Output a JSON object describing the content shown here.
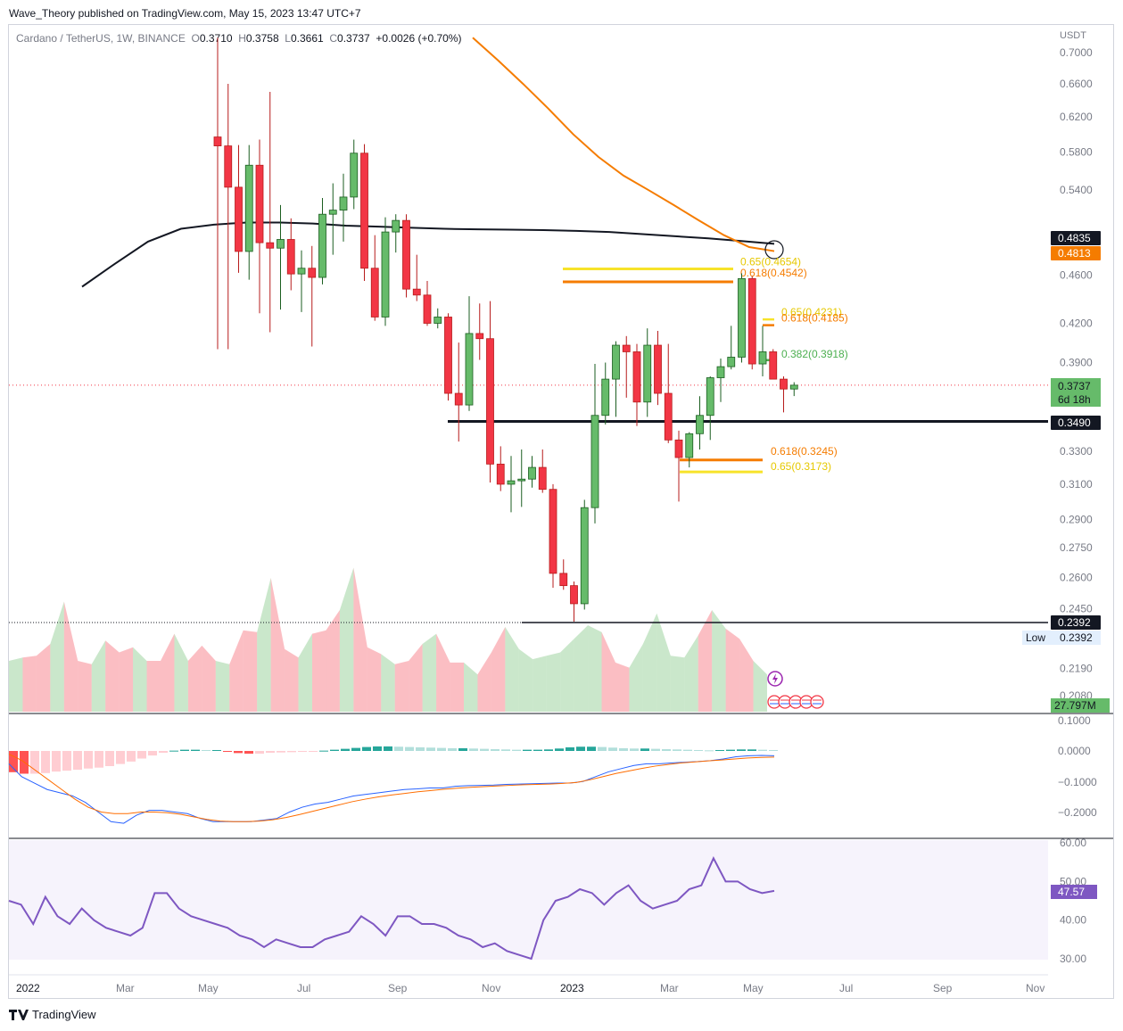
{
  "header": {
    "published": "Wave_Theory published on TradingView.com, May 15, 2023 13:47 UTC+7",
    "symbol": "Cardano / TetherUS, 1W, BINANCE",
    "o_label": "O",
    "o": "0.3710",
    "h_label": "H",
    "h": "0.3758",
    "l_label": "L",
    "l": "0.3661",
    "c_label": "C",
    "c": "0.3737",
    "change": "+0.0026 (+0.70%)"
  },
  "axis": {
    "currency": "USDT",
    "price_ticks": [
      "0.7000",
      "0.6600",
      "0.6200",
      "0.5800",
      "0.5400",
      "0.4600",
      "0.4200",
      "0.3900",
      "0.3300",
      "0.3100",
      "0.2900",
      "0.2750",
      "0.2600",
      "0.2450",
      "0.2190",
      "0.2080"
    ],
    "time_ticks": [
      "2022",
      "Mar",
      "May",
      "Jul",
      "Sep",
      "Nov",
      "2023",
      "Mar",
      "May",
      "Jul",
      "Sep",
      "Nov"
    ],
    "macd_ticks": [
      "0.1000",
      "0.0000",
      "−0.1000",
      "−0.2000"
    ],
    "rsi_ticks": [
      "60.00",
      "50.00",
      "40.00",
      "30.00"
    ]
  },
  "badges": {
    "ma200": "0.4835",
    "ma_orange": "0.4813",
    "last_price": "0.3737",
    "countdown": "6d 18h",
    "support": "0.3490",
    "low_line": "0.2392",
    "low_label": "Low",
    "low_value": "0.2392",
    "volume": "27.797M",
    "rsi": "47.57"
  },
  "fib_labels": {
    "f65_top": "0.65(0.4654)",
    "f618_top": "0.618(0.4542)",
    "f65_mid": "0.65(0.4231)",
    "f618_mid": "0.618(0.4185)",
    "f382": "0.382(0.3918)",
    "f618_low": "0.618(0.3245)",
    "f65_low": "0.65(0.3173)"
  },
  "colors": {
    "up": "#66bb6a",
    "down": "#f23645",
    "up_border": "#1b5e20",
    "down_border": "#b71c1c",
    "ma_orange": "#f57c00",
    "ma_black": "#131722",
    "fib_yellow": "#f7e32a",
    "fib_orange": "#f57c00",
    "fib_green": "#4caf50",
    "rsi": "#7e57c2",
    "macd_blue": "#2962ff",
    "signal": "#ff6d00"
  },
  "footer": {
    "brand": "TradingView"
  },
  "chart_data": {
    "type": "candlestick",
    "title": "Cardano / TetherUS, 1W, BINANCE",
    "ylim": [
      0.2,
      0.72
    ],
    "y_scale": "log",
    "candles": [
      {
        "o": 0.597,
        "h": 0.72,
        "l": 0.4,
        "c": 0.587
      },
      {
        "o": 0.587,
        "h": 0.66,
        "l": 0.4,
        "c": 0.543
      },
      {
        "o": 0.543,
        "h": 0.588,
        "l": 0.462,
        "c": 0.481
      },
      {
        "o": 0.481,
        "h": 0.588,
        "l": 0.456,
        "c": 0.566
      },
      {
        "o": 0.566,
        "h": 0.594,
        "l": 0.428,
        "c": 0.489
      },
      {
        "o": 0.489,
        "h": 0.65,
        "l": 0.413,
        "c": 0.484
      },
      {
        "o": 0.484,
        "h": 0.525,
        "l": 0.431,
        "c": 0.492
      },
      {
        "o": 0.492,
        "h": 0.512,
        "l": 0.447,
        "c": 0.461
      },
      {
        "o": 0.461,
        "h": 0.482,
        "l": 0.429,
        "c": 0.466
      },
      {
        "o": 0.466,
        "h": 0.486,
        "l": 0.402,
        "c": 0.458
      },
      {
        "o": 0.458,
        "h": 0.532,
        "l": 0.452,
        "c": 0.516
      },
      {
        "o": 0.516,
        "h": 0.547,
        "l": 0.478,
        "c": 0.52
      },
      {
        "o": 0.52,
        "h": 0.557,
        "l": 0.49,
        "c": 0.533
      },
      {
        "o": 0.533,
        "h": 0.594,
        "l": 0.521,
        "c": 0.579
      },
      {
        "o": 0.579,
        "h": 0.589,
        "l": 0.455,
        "c": 0.466
      },
      {
        "o": 0.466,
        "h": 0.496,
        "l": 0.422,
        "c": 0.425
      },
      {
        "o": 0.425,
        "h": 0.513,
        "l": 0.418,
        "c": 0.499
      },
      {
        "o": 0.499,
        "h": 0.516,
        "l": 0.48,
        "c": 0.51
      },
      {
        "o": 0.51,
        "h": 0.516,
        "l": 0.441,
        "c": 0.448
      },
      {
        "o": 0.448,
        "h": 0.478,
        "l": 0.438,
        "c": 0.443
      },
      {
        "o": 0.443,
        "h": 0.455,
        "l": 0.418,
        "c": 0.42
      },
      {
        "o": 0.42,
        "h": 0.432,
        "l": 0.416,
        "c": 0.425
      },
      {
        "o": 0.425,
        "h": 0.428,
        "l": 0.363,
        "c": 0.368
      },
      {
        "o": 0.368,
        "h": 0.405,
        "l": 0.336,
        "c": 0.36
      },
      {
        "o": 0.36,
        "h": 0.442,
        "l": 0.356,
        "c": 0.412
      },
      {
        "o": 0.412,
        "h": 0.436,
        "l": 0.392,
        "c": 0.408
      },
      {
        "o": 0.408,
        "h": 0.438,
        "l": 0.311,
        "c": 0.322
      },
      {
        "o": 0.322,
        "h": 0.333,
        "l": 0.306,
        "c": 0.31
      },
      {
        "o": 0.31,
        "h": 0.327,
        "l": 0.294,
        "c": 0.312
      },
      {
        "o": 0.312,
        "h": 0.331,
        "l": 0.297,
        "c": 0.313
      },
      {
        "o": 0.313,
        "h": 0.327,
        "l": 0.308,
        "c": 0.32
      },
      {
        "o": 0.32,
        "h": 0.331,
        "l": 0.305,
        "c": 0.307
      },
      {
        "o": 0.307,
        "h": 0.31,
        "l": 0.255,
        "c": 0.262
      },
      {
        "o": 0.262,
        "h": 0.269,
        "l": 0.254,
        "c": 0.256
      },
      {
        "o": 0.256,
        "h": 0.258,
        "l": 0.2392,
        "c": 0.2474
      },
      {
        "o": 0.2474,
        "h": 0.301,
        "l": 0.2447,
        "c": 0.2966
      },
      {
        "o": 0.2966,
        "h": 0.389,
        "l": 0.2879,
        "c": 0.353
      },
      {
        "o": 0.353,
        "h": 0.39,
        "l": 0.347,
        "c": 0.378
      },
      {
        "o": 0.378,
        "h": 0.406,
        "l": 0.352,
        "c": 0.403
      },
      {
        "o": 0.403,
        "h": 0.41,
        "l": 0.365,
        "c": 0.398
      },
      {
        "o": 0.398,
        "h": 0.404,
        "l": 0.346,
        "c": 0.362
      },
      {
        "o": 0.362,
        "h": 0.416,
        "l": 0.352,
        "c": 0.403
      },
      {
        "o": 0.403,
        "h": 0.414,
        "l": 0.36,
        "c": 0.368
      },
      {
        "o": 0.368,
        "h": 0.404,
        "l": 0.335,
        "c": 0.337
      },
      {
        "o": 0.337,
        "h": 0.343,
        "l": 0.3,
        "c": 0.326
      },
      {
        "o": 0.326,
        "h": 0.342,
        "l": 0.32,
        "c": 0.341
      },
      {
        "o": 0.341,
        "h": 0.366,
        "l": 0.331,
        "c": 0.353
      },
      {
        "o": 0.353,
        "h": 0.38,
        "l": 0.337,
        "c": 0.379
      },
      {
        "o": 0.379,
        "h": 0.393,
        "l": 0.362,
        "c": 0.387
      },
      {
        "o": 0.387,
        "h": 0.418,
        "l": 0.385,
        "c": 0.394
      },
      {
        "o": 0.394,
        "h": 0.4615,
        "l": 0.39,
        "c": 0.457
      },
      {
        "o": 0.457,
        "h": 0.459,
        "l": 0.385,
        "c": 0.389
      },
      {
        "o": 0.389,
        "h": 0.418,
        "l": 0.38,
        "c": 0.398
      },
      {
        "o": 0.398,
        "h": 0.4,
        "l": 0.379,
        "c": 0.378
      },
      {
        "o": 0.378,
        "h": 0.38,
        "l": 0.355,
        "c": 0.371
      },
      {
        "o": 0.371,
        "h": 0.3758,
        "l": 0.3661,
        "c": 0.3737
      }
    ],
    "ma_black_200w": [
      0.45,
      0.47,
      0.49,
      0.502,
      0.506,
      0.508,
      0.508,
      0.507,
      0.505,
      0.504,
      0.503,
      0.502,
      0.5015,
      0.5012,
      0.5008,
      0.5,
      0.499,
      0.497,
      0.495,
      0.493,
      0.4905,
      0.488
    ],
    "ma_orange": [
      0.72,
      0.69,
      0.66,
      0.63,
      0.6,
      0.575,
      0.555,
      0.54,
      0.525,
      0.51,
      0.496,
      0.485,
      0.4813
    ],
    "levels": [
      {
        "name": "support",
        "value": 0.349
      },
      {
        "name": "yearly_low",
        "value": 0.2392
      },
      {
        "name": "fib_0.65_top",
        "value": 0.4654
      },
      {
        "name": "fib_0.618_top",
        "value": 0.4542
      },
      {
        "name": "fib_0.65_mid",
        "value": 0.4231
      },
      {
        "name": "fib_0.618_mid",
        "value": 0.4185
      },
      {
        "name": "fib_0.382",
        "value": 0.3918
      },
      {
        "name": "fib_0.618_low",
        "value": 0.3245
      },
      {
        "name": "fib_0.65_low",
        "value": 0.3173
      }
    ],
    "volume": [
      0.3,
      0.32,
      0.33,
      0.4,
      0.65,
      0.3,
      0.28,
      0.42,
      0.35,
      0.38,
      0.3,
      0.3,
      0.46,
      0.3,
      0.39,
      0.3,
      0.28,
      0.48,
      0.47,
      0.79,
      0.37,
      0.32,
      0.46,
      0.48,
      0.6,
      0.85,
      0.38,
      0.34,
      0.28,
      0.3,
      0.4,
      0.46,
      0.29,
      0.29,
      0.22,
      0.35,
      0.5,
      0.37,
      0.31,
      0.33,
      0.35,
      0.43,
      0.51,
      0.47,
      0.29,
      0.26,
      0.4,
      0.58,
      0.33,
      0.32,
      0.45,
      0.6,
      0.49,
      0.43,
      0.3,
      0.22
    ],
    "macd_histogram": [
      -0.07,
      -0.075,
      -0.075,
      -0.073,
      -0.068,
      -0.065,
      -0.062,
      -0.058,
      -0.055,
      -0.05,
      -0.043,
      -0.035,
      -0.025,
      -0.015,
      -0.006,
      0.001,
      0.004,
      0.004,
      0.003,
      0.003,
      -0.003,
      -0.007,
      -0.009,
      -0.009,
      -0.006,
      -0.005,
      -0.004,
      -0.003,
      -0.002,
      0.001,
      0.004,
      0.007,
      0.01,
      0.013,
      0.015,
      0.015,
      0.014,
      0.013,
      0.012,
      0.011,
      0.01,
      0.009,
      0.009,
      0.008,
      0.007,
      0.006,
      0.005,
      0.004,
      0.004,
      0.004,
      0.005,
      0.008,
      0.012,
      0.014,
      0.014,
      0.013,
      0.011,
      0.009,
      0.008,
      0.008,
      0.007,
      0.006,
      0.005,
      0.004,
      0.003,
      0.002,
      0.003,
      0.004,
      0.005,
      0.005,
      0.004,
      0.003
    ],
    "macd_line": [
      -0.04,
      -0.08,
      -0.1,
      -0.12,
      -0.13,
      -0.14,
      -0.16,
      -0.19,
      -0.22,
      -0.225,
      -0.2,
      -0.185,
      -0.185,
      -0.19,
      -0.195,
      -0.21,
      -0.22,
      -0.22,
      -0.22,
      -0.22,
      -0.215,
      -0.21,
      -0.19,
      -0.175,
      -0.165,
      -0.16,
      -0.15,
      -0.14,
      -0.135,
      -0.13,
      -0.125,
      -0.12,
      -0.118,
      -0.115,
      -0.115,
      -0.11,
      -0.108,
      -0.107,
      -0.106,
      -0.104,
      -0.103,
      -0.102,
      -0.101,
      -0.1,
      -0.1,
      -0.095,
      -0.08,
      -0.065,
      -0.055,
      -0.045,
      -0.04,
      -0.04,
      -0.037,
      -0.035,
      -0.033,
      -0.03,
      -0.025,
      -0.018,
      -0.015,
      -0.014,
      -0.015
    ],
    "macd_signal": [
      -0.01,
      -0.03,
      -0.06,
      -0.09,
      -0.12,
      -0.15,
      -0.175,
      -0.19,
      -0.195,
      -0.195,
      -0.19,
      -0.19,
      -0.192,
      -0.197,
      -0.205,
      -0.213,
      -0.218,
      -0.22,
      -0.22,
      -0.218,
      -0.214,
      -0.207,
      -0.198,
      -0.188,
      -0.178,
      -0.168,
      -0.158,
      -0.15,
      -0.143,
      -0.137,
      -0.132,
      -0.127,
      -0.123,
      -0.119,
      -0.116,
      -0.113,
      -0.111,
      -0.109,
      -0.107,
      -0.105,
      -0.104,
      -0.103,
      -0.101,
      -0.098,
      -0.09,
      -0.08,
      -0.07,
      -0.062,
      -0.054,
      -0.047,
      -0.042,
      -0.037,
      -0.034,
      -0.031,
      -0.028,
      -0.025,
      -0.022,
      -0.02,
      -0.019
    ],
    "rsi": [
      45,
      44,
      39,
      46,
      41,
      39,
      43,
      40,
      38,
      37,
      36,
      38,
      47,
      47,
      43,
      41,
      40,
      39,
      38,
      36,
      35,
      33,
      35,
      34,
      33,
      33,
      35,
      36,
      37,
      41,
      39,
      36,
      41,
      41,
      39,
      39,
      38,
      36,
      35,
      33,
      34,
      32,
      31,
      30,
      40,
      45,
      46,
      48,
      47,
      44,
      47,
      49,
      45,
      43,
      44,
      45,
      48,
      49,
      56,
      50,
      50,
      48,
      47,
      47.57
    ]
  }
}
